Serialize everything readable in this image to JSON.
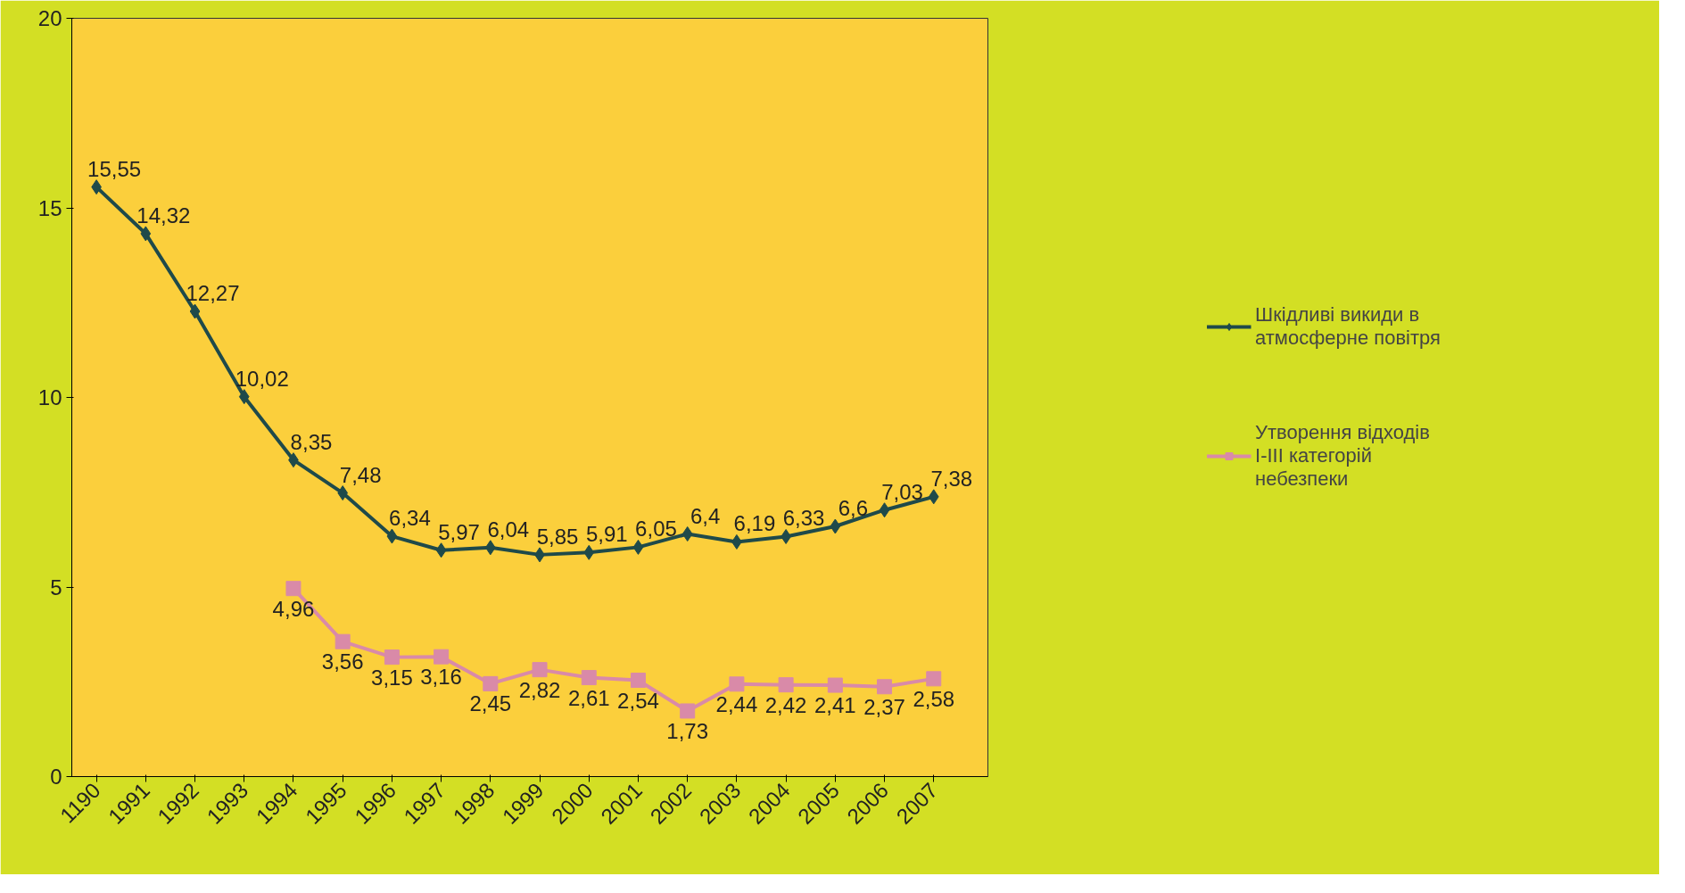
{
  "chart_data": {
    "type": "line",
    "categories": [
      "1190",
      "1991",
      "1992",
      "1993",
      "1994",
      "1995",
      "1996",
      "1997",
      "1998",
      "1999",
      "2000",
      "2001",
      "2002",
      "2003",
      "2004",
      "2005",
      "2006",
      "2007"
    ],
    "series": [
      {
        "name": "Шкідливі викиди в атмосферне повітря",
        "color": "#1f4a4a",
        "marker": "diamond",
        "values": [
          15.55,
          14.32,
          12.27,
          10.02,
          8.35,
          7.48,
          6.34,
          5.97,
          6.04,
          5.85,
          5.91,
          6.05,
          6.4,
          6.19,
          6.33,
          6.6,
          7.03,
          7.38
        ],
        "value_labels": [
          "15,55",
          "14,32",
          "12,27",
          "10,02",
          "8,35",
          "7,48",
          "6,34",
          "5,97",
          "6,04",
          "5,85",
          "5,91",
          "6,05",
          "6,4",
          "6,19",
          "6,33",
          "6,6",
          "7,03",
          "7,38"
        ]
      },
      {
        "name": "Утворення відходів I-III категорій небезпеки",
        "color": "#d98aa8",
        "marker": "square",
        "values": [
          null,
          null,
          null,
          null,
          4.96,
          3.56,
          3.15,
          3.16,
          2.45,
          2.82,
          2.61,
          2.54,
          1.73,
          2.44,
          2.42,
          2.41,
          2.37,
          2.58
        ],
        "value_labels": [
          null,
          null,
          null,
          null,
          "4,96",
          "3,56",
          "3,15",
          "3,16",
          "2,45",
          "2,82",
          "2,61",
          "2,54",
          "1,73",
          "2,44",
          "2,42",
          "2,41",
          "2,37",
          "2,58"
        ]
      }
    ],
    "ylim": [
      0,
      20
    ],
    "yticks": [
      0,
      5,
      10,
      15,
      20
    ],
    "grid": false,
    "legend": "right"
  }
}
